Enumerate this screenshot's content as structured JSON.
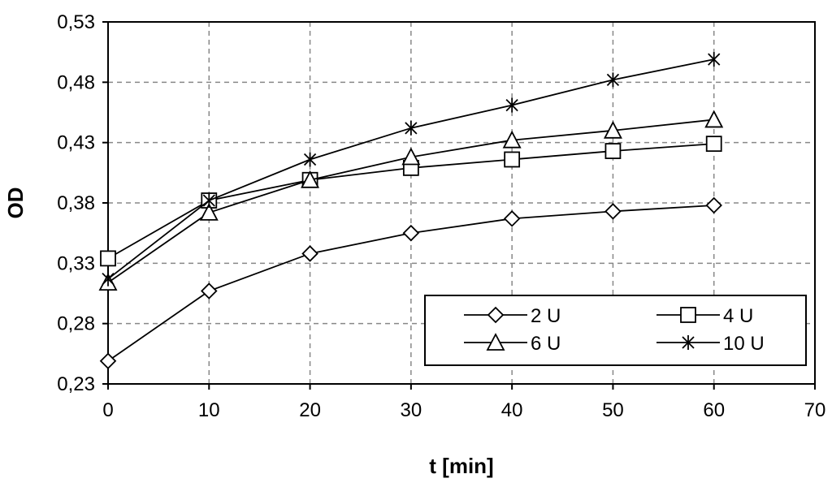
{
  "chart_data": {
    "type": "line",
    "title": "",
    "xlabel": "t [min]",
    "ylabel": "OD",
    "xlim": [
      0,
      70
    ],
    "ylim": [
      0.23,
      0.53
    ],
    "x_ticks": [
      0,
      10,
      20,
      30,
      40,
      50,
      60,
      70
    ],
    "x_tick_labels": [
      "0",
      "10",
      "20",
      "30",
      "40",
      "50",
      "60",
      "70"
    ],
    "y_ticks": [
      0.23,
      0.28,
      0.33,
      0.38,
      0.43,
      0.48,
      0.53
    ],
    "y_tick_labels": [
      "0,23",
      "0,28",
      "0,33",
      "0,38",
      "0,43",
      "0,48",
      "0,53"
    ],
    "grid": true,
    "legend_position": "bottom-right",
    "x": [
      0,
      10,
      20,
      30,
      40,
      50,
      60
    ],
    "series": [
      {
        "name": "2 U",
        "marker": "diamond",
        "values": [
          0.249,
          0.307,
          0.338,
          0.355,
          0.367,
          0.373,
          0.378
        ]
      },
      {
        "name": "4 U",
        "marker": "square",
        "values": [
          0.334,
          0.382,
          0.399,
          0.409,
          0.416,
          0.423,
          0.429
        ]
      },
      {
        "name": "6 U",
        "marker": "triangle",
        "values": [
          0.314,
          0.372,
          0.399,
          0.418,
          0.432,
          0.44,
          0.449
        ]
      },
      {
        "name": "10 U",
        "marker": "star",
        "values": [
          0.317,
          0.382,
          0.416,
          0.442,
          0.461,
          0.482,
          0.499
        ]
      }
    ]
  }
}
